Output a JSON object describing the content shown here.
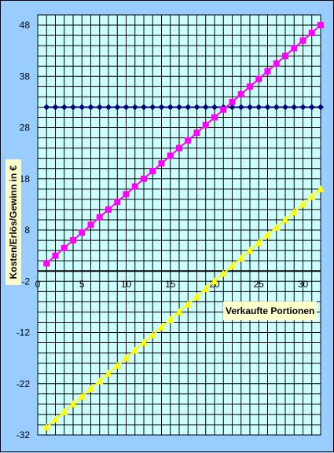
{
  "chart_data": {
    "type": "line",
    "title": "",
    "xlabel": "Verkaufte Portionen",
    "ylabel": "Kosten/Erlös/Gewinn in €",
    "xlim": [
      0,
      32
    ],
    "ylim": [
      -32,
      50
    ],
    "x_ticks": [
      0,
      5,
      10,
      15,
      20,
      25,
      30
    ],
    "y_ticks": [
      48,
      38,
      28,
      18,
      8,
      -2,
      -12,
      -22,
      -32
    ],
    "grid": true,
    "legend": "none",
    "x": [
      1,
      2,
      3,
      4,
      5,
      6,
      7,
      8,
      9,
      10,
      11,
      12,
      13,
      14,
      15,
      16,
      17,
      18,
      19,
      20,
      21,
      22,
      23,
      24,
      25,
      26,
      27,
      28,
      29,
      30,
      31,
      32
    ],
    "series": [
      {
        "color": "#000080",
        "marker": "diamond",
        "values": [
          32,
          32,
          32,
          32,
          32,
          32,
          32,
          32,
          32,
          32,
          32,
          32,
          32,
          32,
          32,
          32,
          32,
          32,
          32,
          32,
          32,
          32,
          32,
          32,
          32,
          32,
          32,
          32,
          32,
          32,
          32,
          32
        ]
      },
      {
        "color": "#FF00FF",
        "marker": "square",
        "values": [
          1.5,
          3,
          4.5,
          6,
          7.5,
          9,
          10.5,
          12,
          13.5,
          15,
          16.5,
          18,
          19.5,
          21,
          22.5,
          24,
          25.5,
          27,
          28.5,
          30,
          31.5,
          33,
          34.5,
          36,
          37.5,
          39,
          40.5,
          42,
          43.5,
          45,
          46.5,
          48
        ]
      },
      {
        "color": "#FFFF00",
        "marker": "triangle",
        "values": [
          -30.5,
          -29,
          -27.5,
          -26,
          -24.5,
          -23,
          -21.5,
          -20,
          -18.5,
          -17,
          -15.5,
          -14,
          -12.5,
          -11,
          -9.5,
          -8,
          -6.5,
          -5,
          -3.5,
          -2,
          -0.5,
          1,
          2.5,
          4,
          5.5,
          7,
          8.5,
          10,
          11.5,
          13,
          14.5,
          16
        ]
      }
    ]
  },
  "colors": {
    "background": "#99CCFF",
    "plot_area": "#CCFFFF",
    "gridline": "#000000",
    "label_box": "#FFFFCC"
  }
}
